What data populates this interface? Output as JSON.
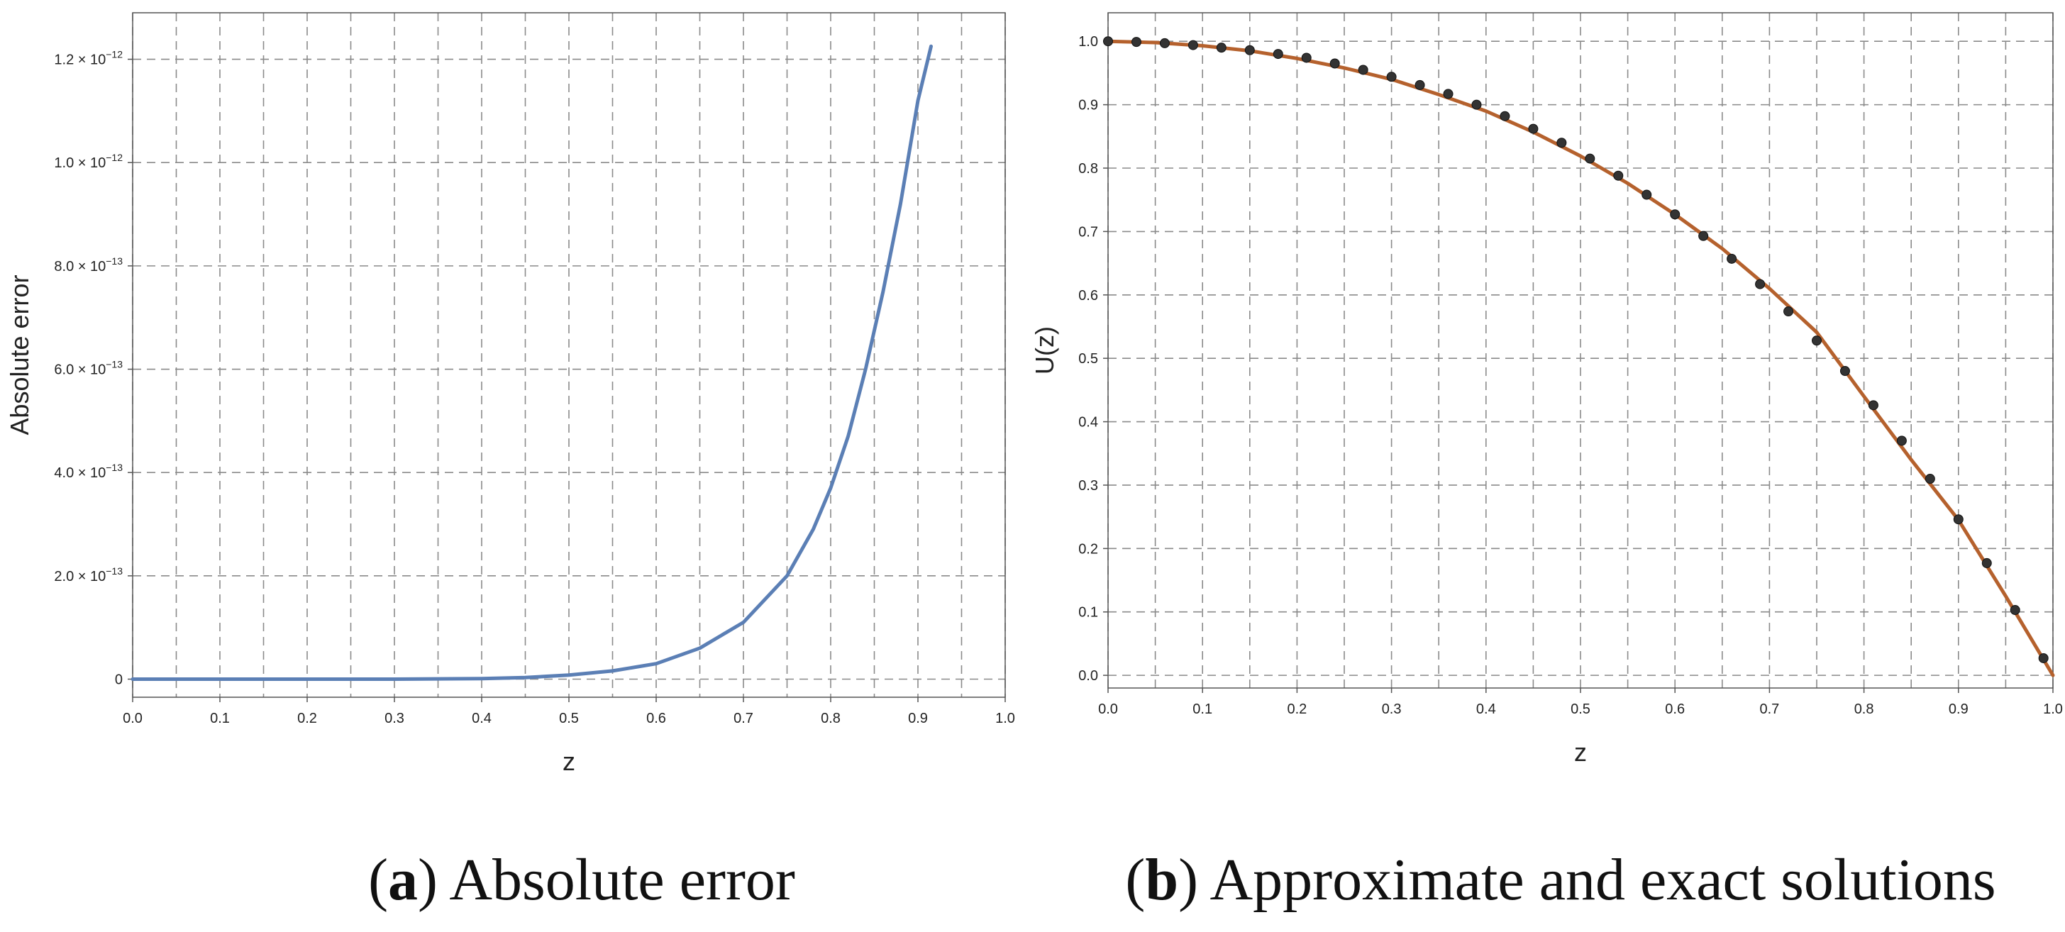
{
  "chart_data": [
    {
      "type": "line",
      "xlabel": "z",
      "ylabel": "Absolute error",
      "xlim": [
        0.0,
        1.0
      ],
      "ylim": [
        -3.5e-14,
        1.29e-12
      ],
      "x_ticks": [
        "0.0",
        "0.1",
        "0.2",
        "0.3",
        "0.4",
        "0.5",
        "0.6",
        "0.7",
        "0.8",
        "0.9",
        "1.0"
      ],
      "y_ticks": [
        {
          "value": 0,
          "mant": "0",
          "exp": ""
        },
        {
          "value": 2e-13,
          "mant": "2.0",
          "exp": "−13"
        },
        {
          "value": 4e-13,
          "mant": "4.0",
          "exp": "−13"
        },
        {
          "value": 6e-13,
          "mant": "6.0",
          "exp": "−13"
        },
        {
          "value": 8e-13,
          "mant": "8.0",
          "exp": "−13"
        },
        {
          "value": 1e-12,
          "mant": "1.0",
          "exp": "−12"
        },
        {
          "value": 1.2e-12,
          "mant": "1.2",
          "exp": "−12"
        }
      ],
      "grid": true,
      "series": [
        {
          "color": "#5b7fb5",
          "x": [
            0.0,
            0.1,
            0.2,
            0.3,
            0.35,
            0.4,
            0.45,
            0.5,
            0.55,
            0.6,
            0.65,
            0.7,
            0.75,
            0.78,
            0.8,
            0.82,
            0.84,
            0.86,
            0.88,
            0.9,
            0.915
          ],
          "y": [
            0,
            0,
            0,
            0,
            5e-16,
            1e-15,
            3e-15,
            8e-15,
            1.6e-14,
            3e-14,
            6e-14,
            1.1e-13,
            2e-13,
            2.9e-13,
            3.7e-13,
            4.7e-13,
            6e-13,
            7.5e-13,
            9.2e-13,
            1.12e-12,
            1.225e-12
          ]
        }
      ]
    },
    {
      "type": "line",
      "xlabel": "z",
      "ylabel": "U(z)",
      "xlim": [
        0.0,
        1.0
      ],
      "ylim": [
        -0.02,
        1.045
      ],
      "x_ticks": [
        "0.0",
        "0.1",
        "0.2",
        "0.3",
        "0.4",
        "0.5",
        "0.6",
        "0.7",
        "0.8",
        "0.9",
        "1.0"
      ],
      "y_ticks": [
        "0.0",
        "0.1",
        "0.2",
        "0.3",
        "0.4",
        "0.5",
        "0.6",
        "0.7",
        "0.8",
        "0.9",
        "1.0"
      ],
      "grid": true,
      "series": [
        {
          "color": "#b5612d",
          "x": [
            0.0,
            0.05,
            0.1,
            0.15,
            0.2,
            0.25,
            0.3,
            0.35,
            0.4,
            0.45,
            0.5,
            0.55,
            0.6,
            0.65,
            0.7,
            0.75,
            0.8,
            0.85,
            0.9,
            0.95,
            1.0
          ],
          "y": [
            1.0,
            0.998,
            0.993,
            0.985,
            0.973,
            0.958,
            0.94,
            0.916,
            0.89,
            0.857,
            0.819,
            0.776,
            0.727,
            0.673,
            0.61,
            0.541,
            0.44,
            0.34,
            0.245,
            0.125,
            0.0
          ]
        },
        {
          "color": "#333333",
          "marker": "dot",
          "x": [
            0.0,
            0.03,
            0.06,
            0.09,
            0.12,
            0.15,
            0.18,
            0.21,
            0.24,
            0.27,
            0.3,
            0.33,
            0.36,
            0.39,
            0.42,
            0.45,
            0.48,
            0.51,
            0.54,
            0.57,
            0.6,
            0.63,
            0.66,
            0.69,
            0.72,
            0.75,
            0.78,
            0.81,
            0.84,
            0.87,
            0.9,
            0.93,
            0.96,
            0.99
          ],
          "y": [
            1.0,
            0.999,
            0.997,
            0.994,
            0.99,
            0.986,
            0.98,
            0.974,
            0.965,
            0.955,
            0.944,
            0.931,
            0.917,
            0.9,
            0.882,
            0.862,
            0.84,
            0.815,
            0.788,
            0.758,
            0.727,
            0.693,
            0.657,
            0.617,
            0.574,
            0.528,
            0.48,
            0.426,
            0.37,
            0.31,
            0.246,
            0.177,
            0.103,
            0.027
          ]
        }
      ]
    }
  ],
  "captions": [
    {
      "letter": "a",
      "text": " Absolute error"
    },
    {
      "letter": "b",
      "text": " Approximate and exact solutions"
    }
  ]
}
